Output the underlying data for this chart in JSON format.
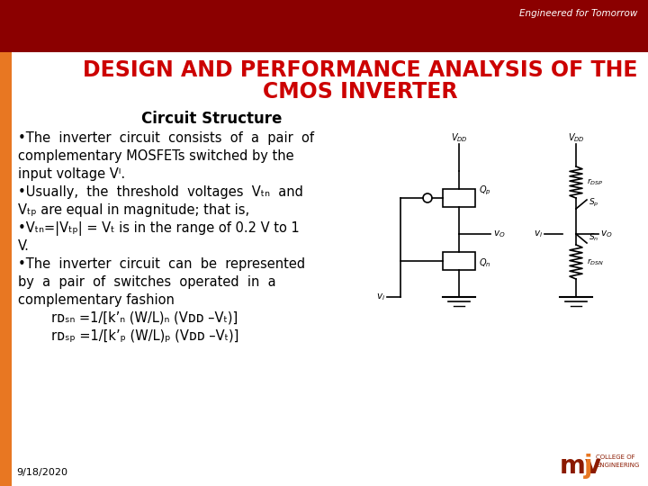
{
  "title_line1": "DESIGN AND PERFORMANCE ANALYSIS OF THE",
  "title_line2": "CMOS INVERTER",
  "title_color": "#CC0000",
  "title_fontsize": 17,
  "subtitle": "Circuit Structure",
  "subtitle_fontsize": 12,
  "bg_color": "#FFFFFF",
  "header_bar_color": "#8B0000",
  "left_bar_color": "#E87722",
  "date_text": "9/18/2020",
  "engineered_text": "Engineered for Tomorrow",
  "body_lines": [
    "•The  inverter  circuit  consists  of  a  pair  of",
    "complementary MOSFETs switched by the",
    "input voltage Vᴵ.",
    "•Usually,  the  threshold  voltages  Vₜₙ  and",
    "Vₜₚ are equal in magnitude; that is,",
    "•Vₜₙ=|Vₜₚ| = Vₜ is in the range of 0.2 V to 1",
    "V.",
    "•The  inverter  circuit  can  be  represented",
    "by  a  pair  of  switches  operated  in  a",
    "complementary fashion",
    "        rᴅₛₙ =1/[k’ₙ (W/L)ₙ (Vᴅᴅ –Vₜ)]",
    "        rᴅₛₚ =1/[k’ₚ (W/L)ₚ (Vᴅᴅ –Vₜ)]"
  ],
  "body_fontsize": 10.5,
  "mvj_color": "#8B1A00",
  "mvj_j_color": "#E87722"
}
